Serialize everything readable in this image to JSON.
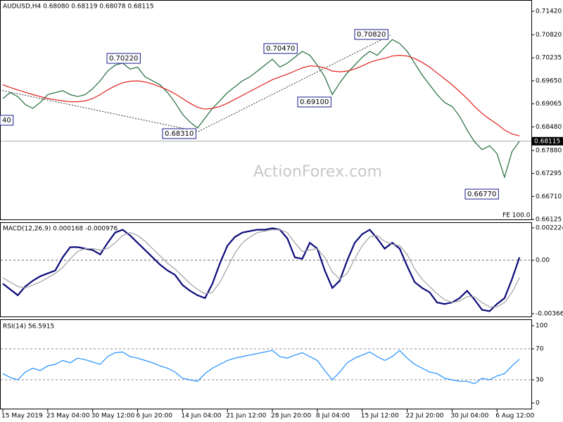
{
  "chart_data": [
    {
      "type": "line",
      "title": "AUDUSD,H4  0.68080 0.68119 0.68078 0.68115",
      "ylim": [
        0.66125,
        0.71706
      ],
      "yticks": [
        {
          "value": 0.7142,
          "label": "0.71420"
        },
        {
          "value": 0.7082,
          "label": "0.70820"
        },
        0.70235,
        {
          "value": 0.6965,
          "label": "0.69650"
        },
        0.69065,
        {
          "value": 0.6848,
          "label": "0.68480"
        },
        {
          "value": 0.6788,
          "label": "0.67880"
        },
        0.67295,
        {
          "value": 0.6671,
          "label": "0.66710"
        },
        0.66125
      ],
      "current_price": {
        "value": 0.68115,
        "label": "0.68115"
      },
      "watermark": "ActionForex.com",
      "note": "FE 100.0",
      "annotations": [
        "40",
        "0.70220",
        "0.68310",
        "0.70470",
        "0.69100",
        "0.70820",
        "0.66770"
      ],
      "series": [
        {
          "color": "#1f6b3a",
          "values": [
            0.692,
            0.6935,
            0.6925,
            0.6905,
            0.6895,
            0.691,
            0.693,
            0.6935,
            0.694,
            0.693,
            0.6925,
            0.693,
            0.6945,
            0.6965,
            0.699,
            0.7005,
            0.701,
            0.6995,
            0.7,
            0.6975,
            0.6965,
            0.6955,
            0.6935,
            0.691,
            0.688,
            0.686,
            0.6845,
            0.687,
            0.6895,
            0.6915,
            0.6935,
            0.695,
            0.6965,
            0.6975,
            0.699,
            0.7005,
            0.702,
            0.7,
            0.701,
            0.7025,
            0.704,
            0.703,
            0.7005,
            0.6975,
            0.693,
            0.696,
            0.6985,
            0.7005,
            0.7025,
            0.704,
            0.703,
            0.705,
            0.707,
            0.706,
            0.704,
            0.701,
            0.698,
            0.6955,
            0.693,
            0.691,
            0.69,
            0.6875,
            0.684,
            0.681,
            0.679,
            0.68,
            0.678,
            0.672,
            0.6785,
            0.68115
          ]
        },
        {
          "color": "#e0201b",
          "values": [
            0.6955,
            0.6948,
            0.6942,
            0.6936,
            0.693,
            0.6925,
            0.692,
            0.6917,
            0.6914,
            0.6912,
            0.6912,
            0.6914,
            0.692,
            0.693,
            0.6942,
            0.6952,
            0.696,
            0.6964,
            0.6965,
            0.6962,
            0.6957,
            0.695,
            0.6942,
            0.6932,
            0.692,
            0.6908,
            0.6898,
            0.6893,
            0.6895,
            0.69,
            0.6908,
            0.6918,
            0.6928,
            0.6938,
            0.6948,
            0.6958,
            0.6968,
            0.6975,
            0.6982,
            0.699,
            0.6998,
            0.7003,
            0.7002,
            0.6998,
            0.699,
            0.6988,
            0.699,
            0.6995,
            0.7003,
            0.7012,
            0.7018,
            0.7022,
            0.7028,
            0.703,
            0.7028,
            0.7022,
            0.7012,
            0.7,
            0.6985,
            0.697,
            0.6955,
            0.6938,
            0.692,
            0.69,
            0.6882,
            0.6868,
            0.6855,
            0.684,
            0.683,
            0.6825
          ]
        }
      ]
    },
    {
      "type": "line",
      "title": "MACD(12,26,9) 0.000168 -0.000976",
      "ylim": [
        -0.00386,
        0.00261
      ],
      "yticks": [
        0.002224,
        {
          "value": 0,
          "label": "0.00"
        },
        -0.003667
      ],
      "series": [
        {
          "color": "#0a0a7a",
          "values": [
            -0.0016,
            -0.002,
            -0.0024,
            -0.0018,
            -0.0014,
            -0.0011,
            -0.0009,
            -0.0007,
            0.0002,
            0.0009,
            0.0009,
            0.0008,
            0.0007,
            0.0004,
            0.0012,
            0.0019,
            0.0021,
            0.0017,
            0.0012,
            0.0007,
            0.0002,
            -0.0003,
            -0.0007,
            -0.001,
            -0.0017,
            -0.0021,
            -0.0024,
            -0.0026,
            -0.0016,
            -0.0002,
            0.001,
            0.0016,
            0.0019,
            0.002,
            0.0021,
            0.0021,
            0.0022,
            0.0021,
            0.0015,
            0.0002,
            0.0001,
            0.0012,
            0.0008,
            -0.0007,
            -0.0019,
            -0.0014,
            0.0,
            0.0012,
            0.0018,
            0.0021,
            0.0015,
            0.0008,
            0.0012,
            0.0008,
            -0.0004,
            -0.0015,
            -0.0019,
            -0.0022,
            -0.0029,
            -0.003,
            -0.0029,
            -0.0026,
            -0.0021,
            -0.0027,
            -0.0034,
            -0.0035,
            -0.003,
            -0.0026,
            -0.0013,
            0.0002
          ]
        },
        {
          "color": "#a0a0a0",
          "values": [
            -0.0012,
            -0.0015,
            -0.0018,
            -0.0019,
            -0.0017,
            -0.0015,
            -0.0012,
            -0.0009,
            -0.0005,
            0.0001,
            0.0006,
            0.0008,
            0.0008,
            0.0007,
            0.0008,
            0.0012,
            0.0017,
            0.0019,
            0.0017,
            0.0013,
            0.0008,
            0.0003,
            -0.0002,
            -0.0006,
            -0.0011,
            -0.0016,
            -0.002,
            -0.0023,
            -0.0022,
            -0.0015,
            -0.0005,
            0.0005,
            0.0012,
            0.0016,
            0.0019,
            0.002,
            0.0021,
            0.0021,
            0.0019,
            0.0012,
            0.0006,
            0.0007,
            0.0008,
            0.0002,
            -0.0008,
            -0.0013,
            -0.0009,
            0.0001,
            0.001,
            0.0016,
            0.0017,
            0.0013,
            0.0011,
            0.001,
            0.0004,
            -0.0006,
            -0.0013,
            -0.0018,
            -0.0023,
            -0.0027,
            -0.0029,
            -0.0028,
            -0.0025,
            -0.0025,
            -0.0029,
            -0.0032,
            -0.0032,
            -0.0029,
            -0.0022,
            -0.0012
          ]
        }
      ]
    },
    {
      "type": "line",
      "title": "RSI(14) 56.5915",
      "ylim": [
        -8.2,
        107.3
      ],
      "yticks": [
        100,
        70,
        30,
        0
      ],
      "categories": [
        "15 May 2019",
        null,
        null,
        null,
        null,
        null,
        "23 May 04:00",
        null,
        null,
        null,
        null,
        null,
        "30 May 12:00",
        null,
        null,
        null,
        null,
        null,
        "6 Jun 20:00",
        null,
        null,
        null,
        null,
        null,
        "14 Jun 04:00",
        null,
        null,
        null,
        null,
        null,
        "21 Jun 12:00",
        null,
        null,
        null,
        null,
        null,
        "28 Jun 20:00",
        null,
        null,
        null,
        null,
        null,
        "8 Jul 04:00",
        null,
        null,
        null,
        null,
        null,
        "15 Jul 12:00",
        null,
        null,
        null,
        null,
        null,
        "22 Jul 20:00",
        null,
        null,
        null,
        null,
        null,
        "30 Jul 04:00",
        null,
        null,
        null,
        null,
        null,
        "6 Aug 12:00",
        null,
        null,
        null
      ],
      "series": [
        {
          "color": "#1e90ff",
          "values": [
            38,
            33,
            30,
            40,
            45,
            42,
            48,
            50,
            55,
            52,
            58,
            56,
            53,
            50,
            60,
            65,
            66,
            60,
            58,
            55,
            52,
            48,
            45,
            40,
            32,
            30,
            28,
            38,
            45,
            50,
            55,
            58,
            60,
            62,
            64,
            66,
            68,
            60,
            58,
            62,
            65,
            60,
            55,
            42,
            30,
            40,
            52,
            58,
            62,
            66,
            60,
            55,
            60,
            68,
            58,
            50,
            45,
            40,
            38,
            32,
            30,
            28,
            28,
            25,
            32,
            30,
            35,
            38,
            48,
            56.5915
          ]
        }
      ]
    }
  ]
}
